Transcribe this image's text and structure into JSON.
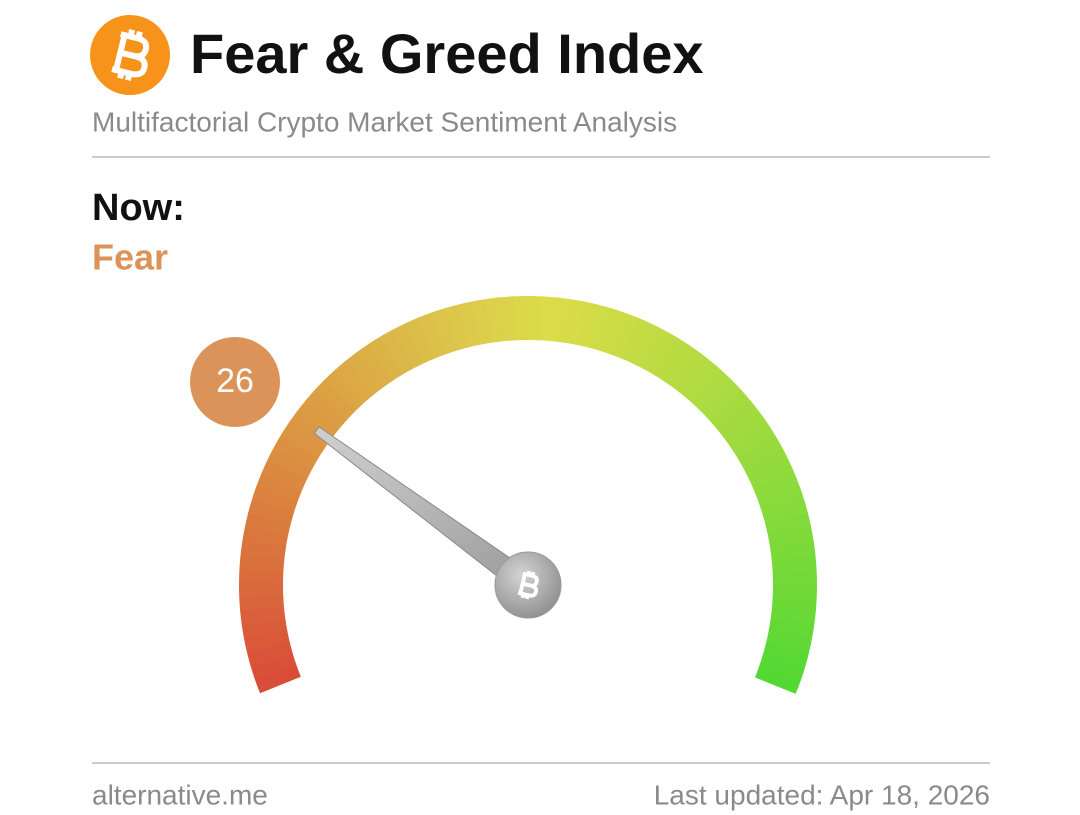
{
  "header": {
    "title": "Fear & Greed Index",
    "subtitle": "Multifactorial Crypto Market Sentiment Analysis"
  },
  "now": {
    "label": "Now:",
    "classification": "Fear"
  },
  "chart_data": {
    "type": "gauge",
    "value": 26,
    "ylim": [
      0,
      100
    ],
    "color": "#dc935a"
  },
  "footer": {
    "source": "alternative.me",
    "updated": "Last updated: Apr 18, 2026"
  }
}
